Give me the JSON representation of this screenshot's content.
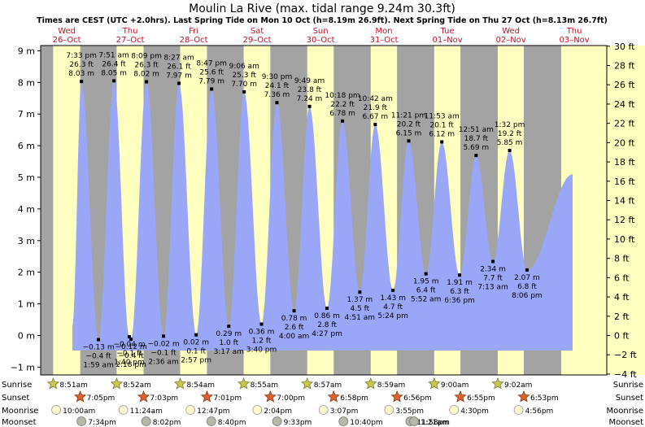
{
  "header": {
    "title": "Moulin La Rive (max. tidal range 9.24m 30.3ft)",
    "subtitle": "Times are CEST (UTC +2.0hrs). Last Spring Tide on Mon 10 Oct (h=8.19m 26.9ft). Next Spring Tide on Thu 27 Oct (h=8.13m 26.7ft)"
  },
  "colors": {
    "night": "#a3a3a3",
    "day": "#ffffc0",
    "water": "#9aa6f7",
    "day_label": "#c8102e"
  },
  "chart_data": {
    "type": "area",
    "days": [
      {
        "dow": "Wed",
        "date": "26–Oct"
      },
      {
        "dow": "Thu",
        "date": "27–Oct"
      },
      {
        "dow": "Fri",
        "date": "28–Oct"
      },
      {
        "dow": "Sat",
        "date": "29–Oct"
      },
      {
        "dow": "Sun",
        "date": "30–Oct"
      },
      {
        "dow": "Mon",
        "date": "31–Oct"
      },
      {
        "dow": "Tue",
        "date": "01–Nov"
      },
      {
        "dow": "Wed",
        "date": "02–Nov"
      },
      {
        "dow": "Thu",
        "date": "03–Nov"
      }
    ],
    "y_left": {
      "unit": "m",
      "min": -1.3,
      "max": 9.7,
      "ticks": [
        -1,
        0,
        1,
        2,
        3,
        4,
        5,
        6,
        7,
        8,
        9
      ],
      "tick_labels": [
        "−1 m",
        "0 m",
        "1 m",
        "2 m",
        "3 m",
        "4 m",
        "5 m",
        "6 m",
        "7 m",
        "8 m",
        "9 m"
      ]
    },
    "y_right": {
      "unit": "ft",
      "ticks": [
        -4,
        -2,
        0,
        2,
        4,
        6,
        8,
        10,
        12,
        14,
        16,
        18,
        20,
        22,
        24,
        26,
        28,
        30
      ],
      "tick_labels": [
        "−4 ft",
        "−2 ft",
        "0 ft",
        "2 ft",
        "4 ft",
        "6 ft",
        "8 ft",
        "10 ft",
        "12 ft",
        "14 ft",
        "16 ft",
        "18 ft",
        "20 ft",
        "22 ft",
        "24 ft",
        "26 ft",
        "28 ft",
        "30 ft"
      ]
    },
    "tides": [
      {
        "type": "high",
        "day": 0,
        "time": "7:33 pm",
        "m": 8.03,
        "m_label": "8.03 m",
        "ft_label": "26.3 ft"
      },
      {
        "type": "low",
        "day": 1,
        "time": "1:40 pm",
        "m": -0.04,
        "m_label": "−0.04 m",
        "ft_label": "−0.1 ft"
      },
      {
        "type": "high",
        "day": 1,
        "time": "7:51 am",
        "m": 8.05,
        "m_label": "8.05 m",
        "ft_label": "26.4 ft"
      },
      {
        "type": "low",
        "day": 1,
        "time": "1:59 am",
        "m": -0.13,
        "m_label": "−0.13 m",
        "ft_label": "−0.4 ft"
      },
      {
        "type": "high",
        "day": 1,
        "time": "8:09 pm",
        "m": 8.02,
        "m_label": "8.02 m",
        "ft_label": "26.3 ft"
      },
      {
        "type": "low",
        "day": 1,
        "time": "2:18 pm",
        "m": -0.12,
        "m_label": "−0.12 m",
        "ft_label": "−0.4 ft"
      },
      {
        "type": "high",
        "day": 2,
        "time": "8:27 am",
        "m": 7.97,
        "m_label": "7.97 m",
        "ft_label": "26.1 ft"
      },
      {
        "type": "low",
        "day": 2,
        "time": "2:36 am",
        "m": -0.02,
        "m_label": "−0.02 m",
        "ft_label": "−0.1 ft"
      },
      {
        "type": "high",
        "day": 2,
        "time": "8:47 pm",
        "m": 7.79,
        "m_label": "7.79 m",
        "ft_label": "25.6 ft"
      },
      {
        "type": "low",
        "day": 2,
        "time": "2:57 pm",
        "m": 0.02,
        "m_label": "0.02 m",
        "ft_label": "0.1 ft"
      },
      {
        "type": "high",
        "day": 3,
        "time": "9:06 am",
        "m": 7.7,
        "m_label": "7.70 m",
        "ft_label": "25.3 ft"
      },
      {
        "type": "low",
        "day": 3,
        "time": "3:17 am",
        "m": 0.29,
        "m_label": "0.29 m",
        "ft_label": "1.0 ft"
      },
      {
        "type": "high",
        "day": 3,
        "time": "9:30 pm",
        "m": 7.36,
        "m_label": "7.36 m",
        "ft_label": "24.1 ft"
      },
      {
        "type": "low",
        "day": 3,
        "time": "3:40 pm",
        "m": 0.36,
        "m_label": "0.36 m",
        "ft_label": "1.2 ft"
      },
      {
        "type": "high",
        "day": 4,
        "time": "9:49 am",
        "m": 7.24,
        "m_label": "7.24 m",
        "ft_label": "23.8 ft"
      },
      {
        "type": "low",
        "day": 4,
        "time": "4:00 am",
        "m": 0.78,
        "m_label": "0.78 m",
        "ft_label": "2.6 ft"
      },
      {
        "type": "high",
        "day": 4,
        "time": "10:18 pm",
        "m": 6.78,
        "m_label": "6.78 m",
        "ft_label": "22.2 ft"
      },
      {
        "type": "low",
        "day": 4,
        "time": "4:27 pm",
        "m": 0.86,
        "m_label": "0.86 m",
        "ft_label": "2.8 ft"
      },
      {
        "type": "high",
        "day": 5,
        "time": "10:42 am",
        "m": 6.67,
        "m_label": "6.67 m",
        "ft_label": "21.9 ft"
      },
      {
        "type": "low",
        "day": 5,
        "time": "4:51 am",
        "m": 1.37,
        "m_label": "1.37 m",
        "ft_label": "4.5 ft"
      },
      {
        "type": "high",
        "day": 5,
        "time": "11:21 pm",
        "m": 6.15,
        "m_label": "6.15 m",
        "ft_label": "20.2 ft"
      },
      {
        "type": "low",
        "day": 5,
        "time": "5:24 pm",
        "m": 1.43,
        "m_label": "1.43 m",
        "ft_label": "4.7 ft"
      },
      {
        "type": "high",
        "day": 6,
        "time": "11:53 am",
        "m": 6.12,
        "m_label": "6.12 m",
        "ft_label": "20.1 ft"
      },
      {
        "type": "low",
        "day": 6,
        "time": "5:52 am",
        "m": 1.95,
        "m_label": "1.95 m",
        "ft_label": "6.4 ft"
      },
      {
        "type": "low",
        "day": 6,
        "time": "6:36 pm",
        "m": 1.91,
        "m_label": "1.91 m",
        "ft_label": "6.3 ft"
      },
      {
        "type": "high",
        "day": 7,
        "time": "12:51 am",
        "m": 5.69,
        "m_label": "5.69 m",
        "ft_label": "18.7 ft"
      },
      {
        "type": "low",
        "day": 7,
        "time": "7:13 am",
        "m": 2.34,
        "m_label": "2.34 m",
        "ft_label": "7.7 ft"
      },
      {
        "type": "high",
        "day": 7,
        "time": "1:32 pm",
        "m": 5.85,
        "m_label": "5.85 m",
        "ft_label": "19.2 ft"
      },
      {
        "type": "low",
        "day": 7,
        "time": "8:06 pm",
        "m": 2.07,
        "m_label": "2.07 m",
        "ft_label": "6.8 ft"
      }
    ],
    "astro": {
      "row_labels": [
        "Sunrise",
        "Sunset",
        "Moonrise",
        "Moonset"
      ],
      "sunrise": [
        {
          "day": 0,
          "time": "8:51am"
        },
        {
          "day": 1,
          "time": "8:52am"
        },
        {
          "day": 2,
          "time": "8:54am"
        },
        {
          "day": 3,
          "time": "8:55am"
        },
        {
          "day": 4,
          "time": "8:57am"
        },
        {
          "day": 5,
          "time": "8:59am"
        },
        {
          "day": 6,
          "time": "9:00am"
        },
        {
          "day": 7,
          "time": "9:02am"
        }
      ],
      "sunset": [
        {
          "day": 0,
          "time": "7:05pm"
        },
        {
          "day": 1,
          "time": "7:03pm"
        },
        {
          "day": 2,
          "time": "7:01pm"
        },
        {
          "day": 3,
          "time": "7:00pm"
        },
        {
          "day": 4,
          "time": "6:58pm"
        },
        {
          "day": 5,
          "time": "6:56pm"
        },
        {
          "day": 6,
          "time": "6:55pm"
        },
        {
          "day": 7,
          "time": "6:53pm"
        }
      ],
      "moonrise": [
        {
          "day": 0,
          "time": "10:00am"
        },
        {
          "day": 1,
          "time": "11:24am"
        },
        {
          "day": 2,
          "time": "12:47pm"
        },
        {
          "day": 3,
          "time": "2:04pm"
        },
        {
          "day": 4,
          "time": "3:07pm"
        },
        {
          "day": 5,
          "time": "3:55pm"
        },
        {
          "day": 6,
          "time": "4:30pm"
        },
        {
          "day": 7,
          "time": "4:56pm"
        }
      ],
      "moonset": [
        {
          "day": 0,
          "time": "7:34pm"
        },
        {
          "day": 1,
          "time": "8:02pm"
        },
        {
          "day": 2,
          "time": "8:40pm"
        },
        {
          "day": 3,
          "time": "9:33pm"
        },
        {
          "day": 4,
          "time": "10:40pm"
        },
        {
          "day": 5,
          "time": "11:58pm"
        },
        {
          "day": 6,
          "time": "1:21am"
        }
      ]
    }
  }
}
